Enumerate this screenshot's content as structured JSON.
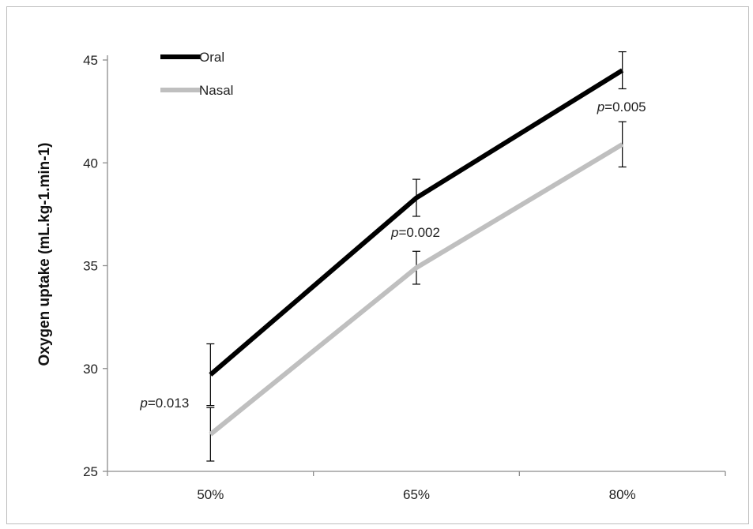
{
  "chart_data": {
    "type": "line",
    "categories": [
      "50%",
      "65%",
      "80%"
    ],
    "ylabel": "Oxygen uptake (mL.kg-1.min-1)",
    "xlabel": "",
    "ylim": [
      25,
      45
    ],
    "yticks": [
      25,
      30,
      35,
      40,
      45
    ],
    "grid": false,
    "legend_position": "top-left",
    "series": [
      {
        "name": "Oral",
        "color": "#000000",
        "values": [
          29.7,
          38.3,
          44.5
        ],
        "err_low": [
          28.2,
          37.4,
          43.6
        ],
        "err_high": [
          31.2,
          39.2,
          45.4
        ]
      },
      {
        "name": "Nasal",
        "color": "#bfbfbf",
        "values": [
          26.8,
          34.9,
          40.9
        ],
        "err_low": [
          25.5,
          34.1,
          39.8
        ],
        "err_high": [
          28.1,
          35.7,
          42.0
        ]
      }
    ],
    "annotations": [
      {
        "category": "50%",
        "p_label": "p",
        "value_text": "=0.013",
        "y": 28.1
      },
      {
        "category": "65%",
        "p_label": "p",
        "value_text": "=0.002",
        "y": 36.4
      },
      {
        "category": "80%",
        "p_label": "p",
        "value_text": "=0.005",
        "y": 42.5
      }
    ]
  }
}
